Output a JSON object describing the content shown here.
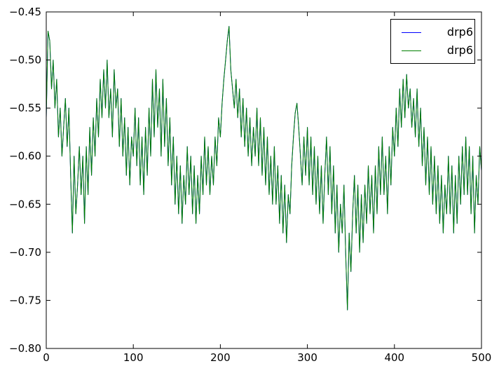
{
  "chart_data": {
    "type": "line",
    "title": "",
    "xlabel": "",
    "ylabel": "",
    "xlim": [
      0,
      500
    ],
    "ylim": [
      -0.8,
      -0.45
    ],
    "grid": false,
    "x_ticks": [
      0,
      100,
      200,
      300,
      400,
      500
    ],
    "x_tick_labels": [
      "0",
      "100",
      "200",
      "300",
      "400",
      "500"
    ],
    "y_ticks": [
      -0.8,
      -0.75,
      -0.7,
      -0.65,
      -0.6,
      -0.55,
      -0.5,
      -0.45
    ],
    "y_tick_labels": [
      "−0.80",
      "−0.75",
      "−0.70",
      "−0.65",
      "−0.60",
      "−0.55",
      "−0.50",
      "−0.45"
    ],
    "legend": {
      "position": "upper right",
      "entries": [
        {
          "label": "drp6",
          "color": "#0000ff"
        },
        {
          "label": "drp6",
          "color": "#007f00"
        }
      ]
    },
    "x_start": 0,
    "x_step": 2,
    "shared_values": [
      -0.56,
      -0.47,
      -0.48,
      -0.53,
      -0.5,
      -0.55,
      -0.52,
      -0.58,
      -0.55,
      -0.6,
      -0.57,
      -0.54,
      -0.59,
      -0.55,
      -0.62,
      -0.68,
      -0.6,
      -0.66,
      -0.63,
      -0.59,
      -0.64,
      -0.6,
      -0.67,
      -0.59,
      -0.64,
      -0.57,
      -0.62,
      -0.56,
      -0.6,
      -0.54,
      -0.58,
      -0.52,
      -0.56,
      -0.51,
      -0.55,
      -0.5,
      -0.56,
      -0.53,
      -0.58,
      -0.51,
      -0.55,
      -0.53,
      -0.59,
      -0.54,
      -0.6,
      -0.56,
      -0.62,
      -0.57,
      -0.63,
      -0.58,
      -0.6,
      -0.55,
      -0.61,
      -0.56,
      -0.63,
      -0.58,
      -0.64,
      -0.57,
      -0.62,
      -0.55,
      -0.6,
      -0.52,
      -0.58,
      -0.51,
      -0.57,
      -0.53,
      -0.6,
      -0.52,
      -0.59,
      -0.54,
      -0.61,
      -0.56,
      -0.63,
      -0.58,
      -0.65,
      -0.6,
      -0.66,
      -0.61,
      -0.67,
      -0.62,
      -0.65,
      -0.59,
      -0.64,
      -0.6,
      -0.66,
      -0.61,
      -0.67,
      -0.62,
      -0.66,
      -0.6,
      -0.64,
      -0.58,
      -0.63,
      -0.59,
      -0.64,
      -0.6,
      -0.63,
      -0.58,
      -0.61,
      -0.56,
      -0.58,
      -0.545,
      -0.52,
      -0.5,
      -0.48,
      -0.465,
      -0.51,
      -0.53,
      -0.55,
      -0.52,
      -0.56,
      -0.53,
      -0.58,
      -0.54,
      -0.59,
      -0.55,
      -0.6,
      -0.56,
      -0.61,
      -0.57,
      -0.6,
      -0.55,
      -0.61,
      -0.56,
      -0.62,
      -0.57,
      -0.63,
      -0.58,
      -0.64,
      -0.6,
      -0.65,
      -0.59,
      -0.65,
      -0.61,
      -0.67,
      -0.62,
      -0.68,
      -0.63,
      -0.69,
      -0.64,
      -0.66,
      -0.61,
      -0.58,
      -0.555,
      -0.545,
      -0.57,
      -0.6,
      -0.63,
      -0.58,
      -0.62,
      -0.57,
      -0.63,
      -0.58,
      -0.64,
      -0.59,
      -0.65,
      -0.6,
      -0.66,
      -0.61,
      -0.67,
      -0.62,
      -0.58,
      -0.64,
      -0.59,
      -0.66,
      -0.61,
      -0.68,
      -0.63,
      -0.7,
      -0.65,
      -0.68,
      -0.63,
      -0.7,
      -0.76,
      -0.68,
      -0.72,
      -0.66,
      -0.62,
      -0.68,
      -0.63,
      -0.7,
      -0.64,
      -0.69,
      -0.63,
      -0.67,
      -0.61,
      -0.66,
      -0.62,
      -0.68,
      -0.61,
      -0.66,
      -0.59,
      -0.64,
      -0.58,
      -0.64,
      -0.6,
      -0.66,
      -0.59,
      -0.63,
      -0.57,
      -0.6,
      -0.55,
      -0.59,
      -0.53,
      -0.57,
      -0.52,
      -0.56,
      -0.515,
      -0.55,
      -0.53,
      -0.57,
      -0.54,
      -0.58,
      -0.53,
      -0.59,
      -0.55,
      -0.61,
      -0.57,
      -0.63,
      -0.58,
      -0.64,
      -0.59,
      -0.65,
      -0.6,
      -0.66,
      -0.61,
      -0.67,
      -0.62,
      -0.68,
      -0.63,
      -0.66,
      -0.6,
      -0.66,
      -0.61,
      -0.68,
      -0.62,
      -0.67,
      -0.6,
      -0.65,
      -0.59,
      -0.64,
      -0.58,
      -0.64,
      -0.59,
      -0.66,
      -0.6,
      -0.68,
      -0.62,
      -0.65,
      -0.59,
      -0.615
    ],
    "series": [
      {
        "name": "drp6",
        "color": "#0000ff",
        "values": "shared"
      },
      {
        "name": "drp6",
        "color": "#007f00",
        "values": "shared"
      }
    ],
    "colors": {
      "axis": "#000000",
      "background": "#ffffff"
    }
  }
}
